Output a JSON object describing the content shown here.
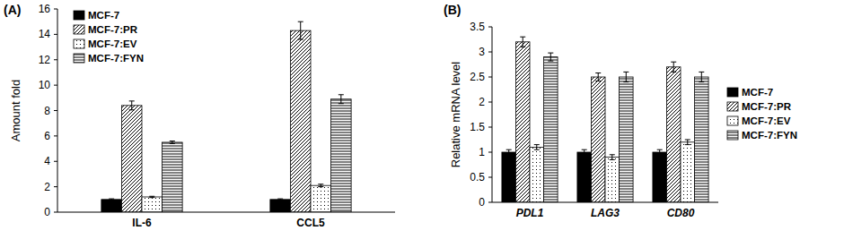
{
  "chart_data": [
    {
      "type": "bar",
      "title": "(A)",
      "y_label": "Amount fold",
      "categories": [
        "IL-6",
        "CCL5"
      ],
      "series": [
        {
          "name": "MCF-7",
          "color": "#000000",
          "values": [
            1,
            1
          ],
          "errors": [
            0.05,
            0.05
          ]
        },
        {
          "name": "MCF-7:PR",
          "color": "#000000",
          "values": [
            8.4,
            14.3
          ],
          "errors": [
            0.35,
            0.7
          ]
        },
        {
          "name": "MCF-7:EV",
          "color": "#000000",
          "values": [
            1.2,
            2.1
          ],
          "errors": [
            0.05,
            0.1
          ]
        },
        {
          "name": "MCF-7:FYN",
          "color": "#000000",
          "values": [
            5.5,
            8.9
          ],
          "errors": [
            0.1,
            0.35
          ]
        }
      ],
      "ylim": [
        0,
        16
      ],
      "yticks": [
        0,
        2,
        4,
        6,
        8,
        10,
        12,
        14,
        16
      ],
      "grid": false,
      "legend": "top-left"
    },
    {
      "type": "bar",
      "title": "(B)",
      "y_label": "Relative mRNA level",
      "categories": [
        "PDL1",
        "LAG3",
        "CD80"
      ],
      "series": [
        {
          "name": "MCF-7",
          "color": "#000000",
          "values": [
            1,
            1,
            1
          ],
          "errors": [
            0.05,
            0.05,
            0.05
          ]
        },
        {
          "name": "MCF-7:PR",
          "color": "#000000",
          "values": [
            3.2,
            2.5,
            2.7
          ],
          "errors": [
            0.1,
            0.08,
            0.1
          ]
        },
        {
          "name": "MCF-7:EV",
          "color": "#000000",
          "values": [
            1.1,
            0.9,
            1.2
          ],
          "errors": [
            0.05,
            0.05,
            0.05
          ]
        },
        {
          "name": "MCF-7:FYN",
          "color": "#000000",
          "values": [
            2.9,
            2.5,
            2.5
          ],
          "errors": [
            0.08,
            0.1,
            0.1
          ]
        }
      ],
      "ylim": [
        0,
        3.5
      ],
      "yticks": [
        0,
        0.5,
        1,
        1.5,
        2,
        2.5,
        3,
        3.5
      ],
      "grid": false,
      "legend": "right"
    }
  ]
}
